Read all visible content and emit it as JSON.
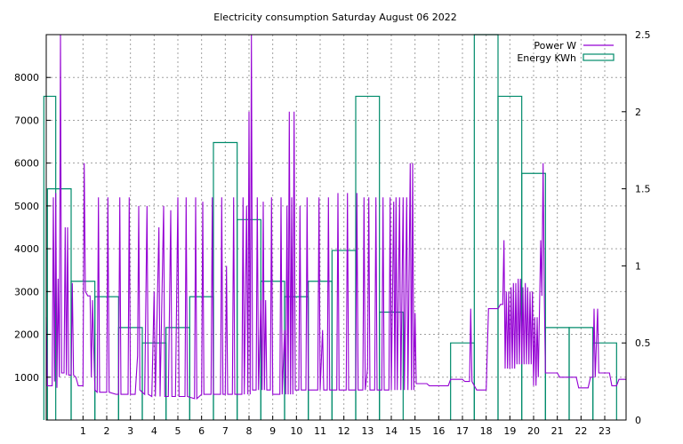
{
  "chart_data": {
    "type": "line",
    "title": "Electricity consumption Saturday August 06 2022",
    "x_ticks": [
      "1",
      "2",
      "3",
      "4",
      "5",
      "6",
      "7",
      "8",
      "9",
      "10",
      "11",
      "12",
      "13",
      "14",
      "15",
      "16",
      "17",
      "18",
      "19",
      "20",
      "21",
      "22",
      "23"
    ],
    "xlim": [
      -0.55,
      23.9
    ],
    "y1_ticks": [
      1000,
      2000,
      3000,
      4000,
      5000,
      6000,
      7000,
      8000
    ],
    "y1lim": [
      0,
      9000
    ],
    "y2_ticks": [
      "0",
      "0.5",
      "1",
      "1.5",
      "2",
      "2.5"
    ],
    "y2lim": [
      0,
      2.5
    ],
    "grid": true,
    "legend_position": "top-right",
    "series": [
      {
        "name": "Power W",
        "axis": "y1",
        "color": "#9400d3",
        "points": [
          [
            -0.55,
            2400
          ],
          [
            -0.5,
            800
          ],
          [
            -0.3,
            800
          ],
          [
            -0.25,
            5200
          ],
          [
            -0.2,
            900
          ],
          [
            -0.15,
            5300
          ],
          [
            -0.1,
            750
          ],
          [
            -0.05,
            3300
          ],
          [
            0.0,
            1000
          ],
          [
            0.05,
            9000
          ],
          [
            0.1,
            1100
          ],
          [
            0.2,
            1100
          ],
          [
            0.25,
            4500
          ],
          [
            0.3,
            1050
          ],
          [
            0.35,
            4500
          ],
          [
            0.4,
            1050
          ],
          [
            0.5,
            1050
          ],
          [
            0.55,
            3200
          ],
          [
            0.6,
            1050
          ],
          [
            0.7,
            1000
          ],
          [
            0.75,
            900
          ],
          [
            0.8,
            800
          ],
          [
            1.0,
            800
          ],
          [
            1.05,
            6000
          ],
          [
            1.1,
            3000
          ],
          [
            1.2,
            2900
          ],
          [
            1.3,
            2900
          ],
          [
            1.35,
            1000
          ],
          [
            1.4,
            2800
          ],
          [
            1.5,
            700
          ],
          [
            1.6,
            650
          ],
          [
            1.65,
            5200
          ],
          [
            1.7,
            650
          ],
          [
            1.9,
            650
          ],
          [
            2.0,
            650
          ],
          [
            2.05,
            5200
          ],
          [
            2.1,
            650
          ],
          [
            2.4,
            600
          ],
          [
            2.5,
            600
          ],
          [
            2.55,
            5200
          ],
          [
            2.6,
            600
          ],
          [
            2.8,
            600
          ],
          [
            2.9,
            600
          ],
          [
            2.95,
            5200
          ],
          [
            3.0,
            600
          ],
          [
            3.2,
            600
          ],
          [
            3.3,
            1500
          ],
          [
            3.35,
            5000
          ],
          [
            3.4,
            700
          ],
          [
            3.6,
            600
          ],
          [
            3.7,
            5000
          ],
          [
            3.75,
            600
          ],
          [
            3.9,
            550
          ],
          [
            4.0,
            3000
          ],
          [
            4.05,
            550
          ],
          [
            4.2,
            4500
          ],
          [
            4.25,
            550
          ],
          [
            4.4,
            5000
          ],
          [
            4.45,
            550
          ],
          [
            4.6,
            550
          ],
          [
            4.7,
            4900
          ],
          [
            4.75,
            550
          ],
          [
            4.9,
            550
          ],
          [
            5.0,
            5200
          ],
          [
            5.05,
            550
          ],
          [
            5.3,
            550
          ],
          [
            5.35,
            5200
          ],
          [
            5.4,
            550
          ],
          [
            5.7,
            500
          ],
          [
            5.75,
            5200
          ],
          [
            5.8,
            500
          ],
          [
            6.0,
            600
          ],
          [
            6.05,
            5100
          ],
          [
            6.1,
            600
          ],
          [
            6.4,
            600
          ],
          [
            6.45,
            5200
          ],
          [
            6.5,
            600
          ],
          [
            6.8,
            600
          ],
          [
            6.85,
            5200
          ],
          [
            6.9,
            600
          ],
          [
            7.0,
            600
          ],
          [
            7.05,
            3600
          ],
          [
            7.1,
            600
          ],
          [
            7.3,
            600
          ],
          [
            7.35,
            5200
          ],
          [
            7.4,
            600
          ],
          [
            7.7,
            600
          ],
          [
            7.75,
            5200
          ],
          [
            7.8,
            600
          ],
          [
            7.9,
            5000
          ],
          [
            7.95,
            600
          ],
          [
            8.0,
            7200
          ],
          [
            8.05,
            600
          ],
          [
            8.1,
            9000
          ],
          [
            8.15,
            700
          ],
          [
            8.3,
            700
          ],
          [
            8.35,
            5200
          ],
          [
            8.4,
            700
          ],
          [
            8.5,
            2800
          ],
          [
            8.55,
            700
          ],
          [
            8.6,
            5100
          ],
          [
            8.65,
            700
          ],
          [
            8.7,
            2800
          ],
          [
            8.75,
            700
          ],
          [
            8.9,
            700
          ],
          [
            8.95,
            5200
          ],
          [
            9.0,
            600
          ],
          [
            9.3,
            600
          ],
          [
            9.35,
            5200
          ],
          [
            9.4,
            600
          ],
          [
            9.5,
            2100
          ],
          [
            9.55,
            600
          ],
          [
            9.6,
            5000
          ],
          [
            9.65,
            600
          ],
          [
            9.7,
            7200
          ],
          [
            9.75,
            600
          ],
          [
            9.8,
            5200
          ],
          [
            9.85,
            600
          ],
          [
            9.9,
            7200
          ],
          [
            9.95,
            700
          ],
          [
            10.1,
            700
          ],
          [
            10.15,
            5000
          ],
          [
            10.2,
            700
          ],
          [
            10.4,
            700
          ],
          [
            10.45,
            5200
          ],
          [
            10.5,
            700
          ],
          [
            10.9,
            700
          ],
          [
            10.95,
            5200
          ],
          [
            11.0,
            700
          ],
          [
            11.1,
            2100
          ],
          [
            11.15,
            700
          ],
          [
            11.3,
            700
          ],
          [
            11.35,
            5200
          ],
          [
            11.4,
            700
          ],
          [
            11.7,
            700
          ],
          [
            11.75,
            5300
          ],
          [
            11.8,
            700
          ],
          [
            12.1,
            700
          ],
          [
            12.15,
            5300
          ],
          [
            12.2,
            700
          ],
          [
            12.5,
            700
          ],
          [
            12.55,
            5300
          ],
          [
            12.6,
            700
          ],
          [
            12.8,
            700
          ],
          [
            12.85,
            5200
          ],
          [
            12.9,
            700
          ],
          [
            13.0,
            1200
          ],
          [
            13.05,
            5200
          ],
          [
            13.1,
            700
          ],
          [
            13.3,
            700
          ],
          [
            13.35,
            5200
          ],
          [
            13.4,
            700
          ],
          [
            13.6,
            700
          ],
          [
            13.65,
            5200
          ],
          [
            13.7,
            700
          ],
          [
            13.9,
            700
          ],
          [
            13.95,
            5200
          ],
          [
            14.0,
            700
          ],
          [
            14.1,
            5100
          ],
          [
            14.15,
            700
          ],
          [
            14.2,
            5200
          ],
          [
            14.25,
            700
          ],
          [
            14.35,
            5200
          ],
          [
            14.4,
            700
          ],
          [
            14.5,
            5200
          ],
          [
            14.55,
            700
          ],
          [
            14.65,
            5200
          ],
          [
            14.7,
            700
          ],
          [
            14.8,
            6000
          ],
          [
            14.85,
            700
          ],
          [
            14.9,
            6000
          ],
          [
            14.95,
            700
          ],
          [
            15.0,
            2500
          ],
          [
            15.05,
            850
          ],
          [
            15.5,
            850
          ],
          [
            15.6,
            800
          ],
          [
            16.4,
            800
          ],
          [
            16.5,
            950
          ],
          [
            17.0,
            950
          ],
          [
            17.1,
            900
          ],
          [
            17.3,
            900
          ],
          [
            17.35,
            2600
          ],
          [
            17.4,
            900
          ],
          [
            17.6,
            700
          ],
          [
            18.0,
            700
          ],
          [
            18.1,
            2600
          ],
          [
            18.5,
            2600
          ],
          [
            18.6,
            2700
          ],
          [
            18.7,
            2700
          ],
          [
            18.75,
            4200
          ],
          [
            18.8,
            1200
          ],
          [
            18.85,
            3000
          ],
          [
            18.9,
            1200
          ],
          [
            18.95,
            3000
          ],
          [
            19.0,
            1200
          ],
          [
            19.05,
            3100
          ],
          [
            19.1,
            1200
          ],
          [
            19.15,
            3200
          ],
          [
            19.2,
            1200
          ],
          [
            19.25,
            3200
          ],
          [
            19.3,
            1300
          ],
          [
            19.35,
            3300
          ],
          [
            19.4,
            1300
          ],
          [
            19.45,
            3300
          ],
          [
            19.5,
            1300
          ],
          [
            19.55,
            3100
          ],
          [
            19.6,
            1300
          ],
          [
            19.65,
            3200
          ],
          [
            19.7,
            1300
          ],
          [
            19.75,
            3100
          ],
          [
            19.8,
            1300
          ],
          [
            19.85,
            3000
          ],
          [
            19.9,
            1300
          ],
          [
            19.95,
            3000
          ],
          [
            20.0,
            800
          ],
          [
            20.05,
            2400
          ],
          [
            20.1,
            800
          ],
          [
            20.15,
            2400
          ],
          [
            20.2,
            1000
          ],
          [
            20.3,
            4200
          ],
          [
            20.35,
            2900
          ],
          [
            20.4,
            6000
          ],
          [
            20.45,
            3000
          ],
          [
            20.5,
            1100
          ],
          [
            21.0,
            1100
          ],
          [
            21.1,
            1000
          ],
          [
            21.8,
            1000
          ],
          [
            21.9,
            750
          ],
          [
            22.3,
            750
          ],
          [
            22.4,
            1000
          ],
          [
            22.5,
            1000
          ],
          [
            22.55,
            2600
          ],
          [
            22.6,
            1000
          ],
          [
            22.7,
            2600
          ],
          [
            22.75,
            1100
          ],
          [
            23.2,
            1100
          ],
          [
            23.3,
            800
          ],
          [
            23.5,
            800
          ],
          [
            23.6,
            950
          ],
          [
            23.9,
            950
          ]
        ]
      },
      {
        "name": "Energy KWh",
        "axis": "y2",
        "color": "#008b6b",
        "hours": [
          -0.5,
          0,
          1,
          2,
          3,
          4,
          5,
          6,
          7,
          8,
          9,
          10,
          11,
          12,
          13,
          14,
          15,
          16,
          17,
          18,
          19,
          20,
          21,
          22,
          23
        ],
        "values": [
          2.1,
          1.5,
          0.9,
          0.8,
          0.6,
          0.5,
          0.6,
          0.8,
          1.8,
          1.3,
          0.9,
          0.8,
          0.9,
          1.1,
          2.1,
          0.7,
          0.0,
          0.0,
          0.5,
          2.6,
          2.1,
          1.6,
          0.6,
          0.6,
          0.5
        ]
      }
    ]
  }
}
